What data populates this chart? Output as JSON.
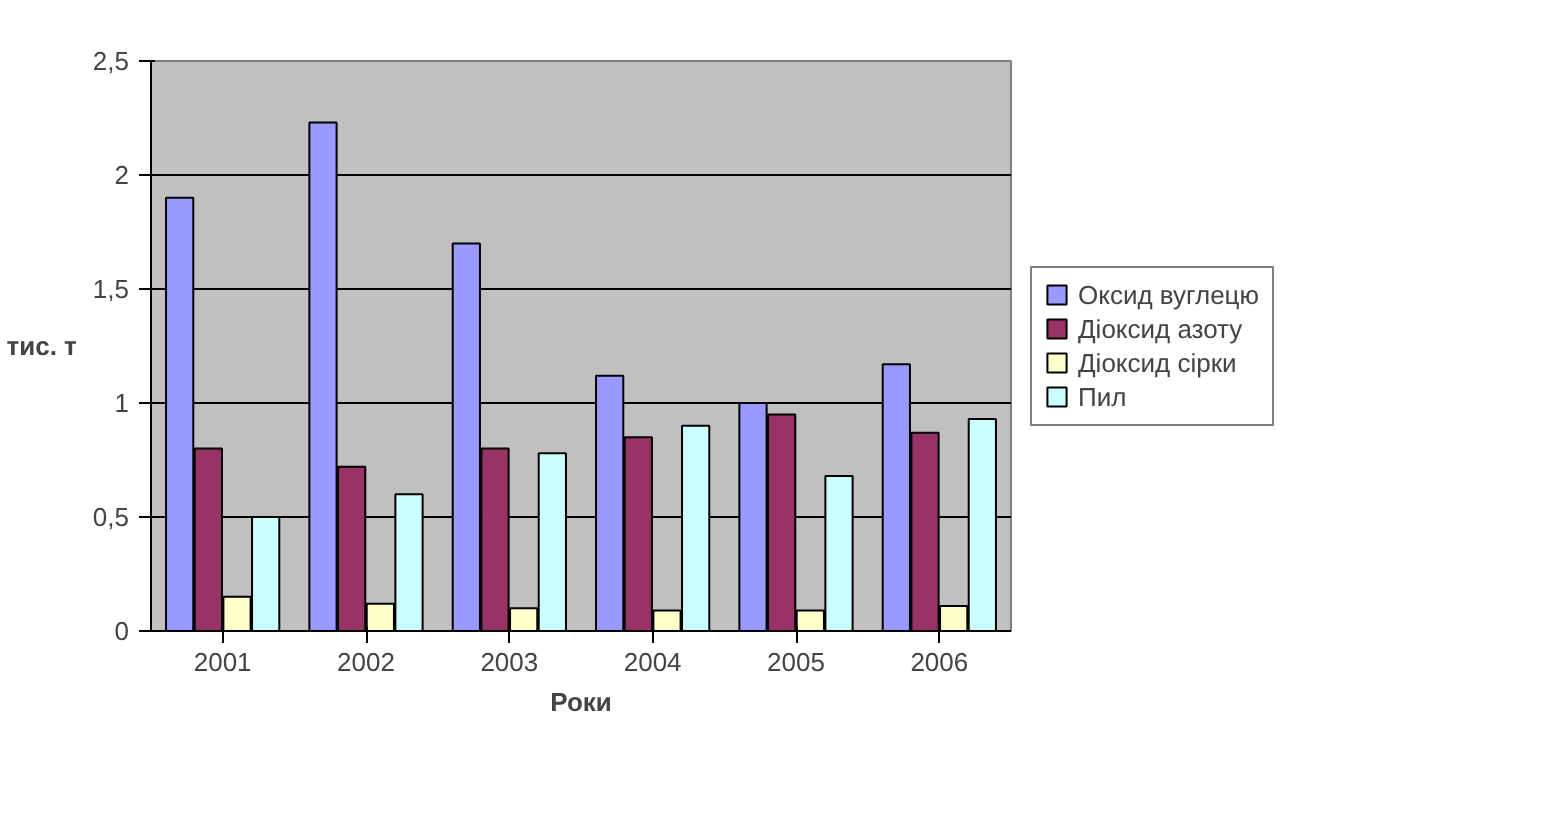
{
  "chart_data": {
    "type": "bar",
    "xlabel": "Роки",
    "ylabel": "тис. т",
    "categories": [
      "2001",
      "2002",
      "2003",
      "2004",
      "2005",
      "2006"
    ],
    "series": [
      {
        "name": "Оксид вуглецю",
        "color": "#9999ff",
        "values": [
          1.9,
          2.23,
          1.7,
          1.12,
          1.0,
          1.17
        ]
      },
      {
        "name": "Діоксид азоту",
        "color": "#993366",
        "values": [
          0.8,
          0.72,
          0.8,
          0.85,
          0.95,
          0.87
        ]
      },
      {
        "name": "Діоксид сірки",
        "color": "#ffffcc",
        "values": [
          0.15,
          0.12,
          0.1,
          0.09,
          0.09,
          0.11
        ]
      },
      {
        "name": "Пил",
        "color": "#ccffff",
        "values": [
          0.5,
          0.6,
          0.78,
          0.9,
          0.68,
          0.93
        ]
      }
    ],
    "ylim": [
      0,
      2.5
    ],
    "yticks": [
      0,
      {
        "value": 0.5,
        "label": "0,5"
      },
      1,
      {
        "value": 1.5,
        "label": "1,5"
      },
      2,
      {
        "value": 2.5,
        "label": "2,5"
      }
    ],
    "grid": "y",
    "legend": "right"
  }
}
